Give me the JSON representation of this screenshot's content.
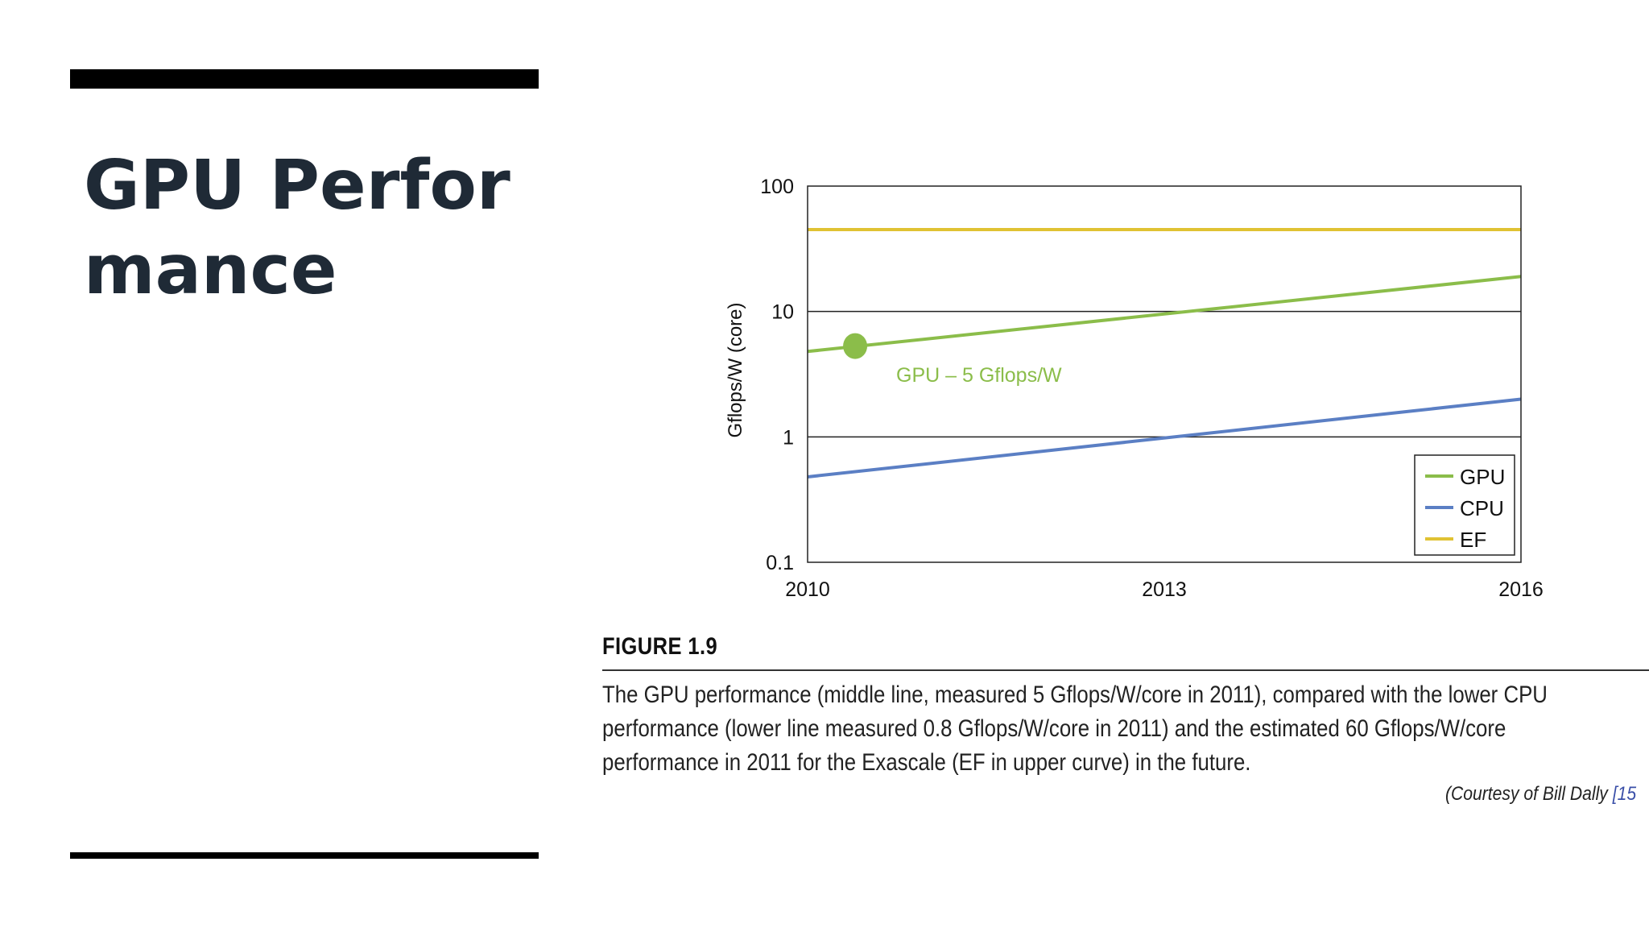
{
  "slide": {
    "title": "GPU Performance"
  },
  "figure": {
    "label": "FIGURE 1.9",
    "caption_lines": [
      "The GPU performance (middle line, measured 5 Gflops/W/core in 2011), compared with the lower CPU",
      "performance (lower line measured 0.8 Gflops/W/core in 2011) and the estimated 60 Gflops/W/core",
      "performance in 2011 for the Exascale (EF in upper curve) in the future."
    ],
    "courtesy_prefix": "(Courtesy of Bill Dally ",
    "courtesy_ref": "[15"
  },
  "chart_data": {
    "type": "line",
    "title": "",
    "xlabel": "",
    "ylabel": "Gflops/W (core)",
    "y_scale": "log",
    "xlim": [
      2010,
      2016
    ],
    "ylim": [
      0.1,
      100
    ],
    "x_ticks": [
      "2010",
      "2013",
      "2016"
    ],
    "y_ticks": [
      "0.1",
      "1",
      "10",
      "100"
    ],
    "grid": "horizontal at 1 and 10",
    "legend_position": "bottom-right",
    "series": [
      {
        "name": "GPU",
        "color": "#8bbd4a",
        "x": [
          2010,
          2016
        ],
        "values": [
          4.8,
          19
        ]
      },
      {
        "name": "CPU",
        "color": "#5b7fc4",
        "x": [
          2010,
          2016
        ],
        "values": [
          0.48,
          2
        ]
      },
      {
        "name": "EF",
        "color": "#e0c233",
        "x": [
          2010,
          2016
        ],
        "values": [
          45,
          45
        ]
      }
    ],
    "annotations": [
      {
        "text": "GPU – 5 Gflops/W",
        "x": 2010.4,
        "y": 5.3,
        "series": "GPU",
        "marker": "dot"
      }
    ]
  }
}
